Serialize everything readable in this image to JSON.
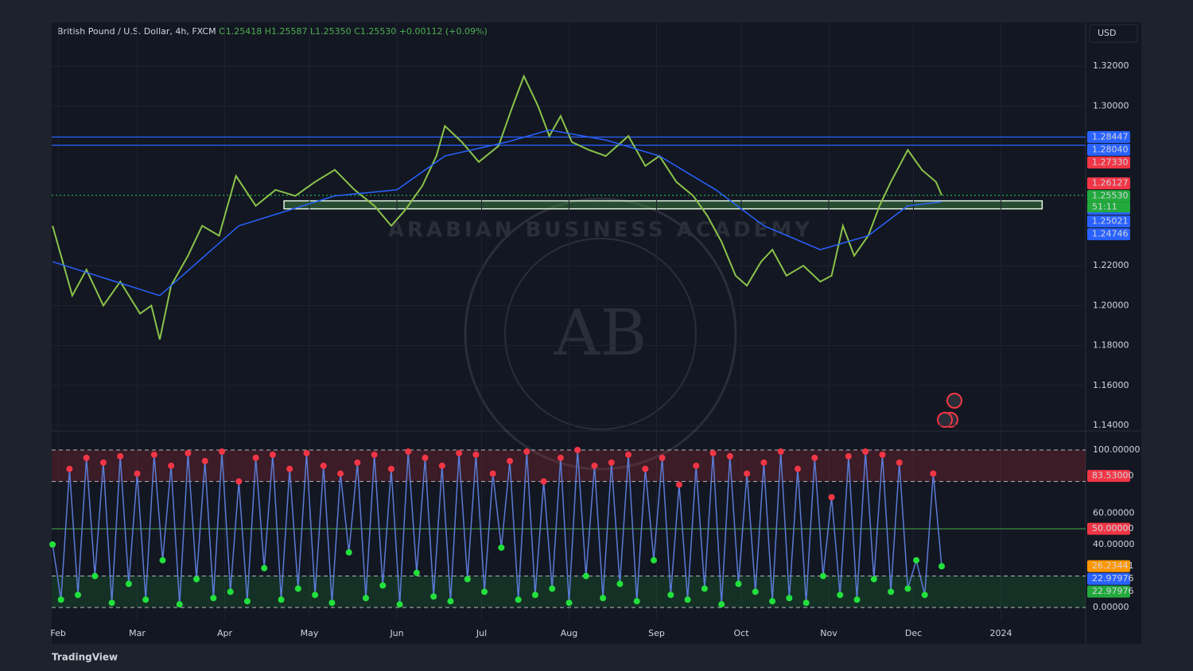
{
  "header": {
    "symbol": "British Pound / U.S. Dollar, 4h, FXCM",
    "open": "O1.25418",
    "high": "H1.25587",
    "low": "L1.25350",
    "close": "C1.25530",
    "change": "+0.00112 (+0.09%)",
    "currency": "USD"
  },
  "watermark": {
    "text": "ARABIAN BUSINESS ACADEMY",
    "logo": "AB"
  },
  "footer": {
    "brand": "TradingView"
  },
  "chart_data": [
    {
      "type": "line",
      "xlim": [
        28.7,
        395
      ],
      "xticks": [
        {
          "value": 31,
          "label": "Feb"
        },
        {
          "value": 59,
          "label": "Mar"
        },
        {
          "value": 90,
          "label": "Apr"
        },
        {
          "value": 120,
          "label": "May"
        },
        {
          "value": 151,
          "label": "Jun"
        },
        {
          "value": 181,
          "label": "Jul"
        },
        {
          "value": 212,
          "label": "Aug"
        },
        {
          "value": 243,
          "label": "Sep"
        },
        {
          "value": 273,
          "label": "Oct"
        },
        {
          "value": 304,
          "label": "Nov"
        },
        {
          "value": 334,
          "label": "Dec"
        },
        {
          "value": 365,
          "label": "2024"
        }
      ],
      "ylim": [
        1.138,
        1.342
      ],
      "yticks": [
        {
          "value": 1.32,
          "label": "1.32000"
        },
        {
          "value": 1.3,
          "label": "1.30000"
        },
        {
          "value": 1.22,
          "label": "1.22000"
        },
        {
          "value": 1.2,
          "label": "1.20000"
        },
        {
          "value": 1.18,
          "label": "1.18000"
        },
        {
          "value": 1.16,
          "label": "1.16000"
        },
        {
          "value": 1.14,
          "label": "1.14000"
        }
      ],
      "grid": true,
      "series": [
        {
          "name": "GBPUSD",
          "color": "#8bc34a",
          "x": [
            29,
            36,
            41,
            47,
            53,
            60,
            64,
            67,
            71,
            77,
            82,
            88,
            94,
            101,
            108,
            115,
            122,
            129,
            136,
            143,
            149,
            154,
            160,
            165,
            168,
            174,
            180,
            187,
            192,
            196,
            201,
            205,
            209,
            213,
            219,
            225,
            233,
            239,
            244,
            250,
            256,
            261,
            266,
            271,
            275,
            280,
            284,
            289,
            295,
            301,
            305,
            309,
            313,
            318,
            322,
            326,
            332,
            337,
            342,
            344
          ],
          "values": [
            1.24,
            1.205,
            1.218,
            1.2,
            1.212,
            1.196,
            1.2,
            1.183,
            1.21,
            1.225,
            1.24,
            1.235,
            1.265,
            1.25,
            1.258,
            1.255,
            1.262,
            1.268,
            1.258,
            1.25,
            1.24,
            1.248,
            1.26,
            1.275,
            1.29,
            1.282,
            1.272,
            1.28,
            1.3,
            1.315,
            1.3,
            1.285,
            1.295,
            1.282,
            1.278,
            1.275,
            1.285,
            1.27,
            1.275,
            1.262,
            1.255,
            1.245,
            1.232,
            1.215,
            1.21,
            1.222,
            1.228,
            1.215,
            1.22,
            1.212,
            1.215,
            1.24,
            1.225,
            1.235,
            1.25,
            1.262,
            1.278,
            1.268,
            1.262,
            1.2553
          ]
        },
        {
          "name": "MA",
          "color": "#2962ff",
          "x": [
            29,
            67,
            95,
            129,
            151,
            168,
            190,
            205,
            225,
            244,
            264,
            281,
            301,
            318,
            332,
            344
          ],
          "values": [
            1.222,
            1.205,
            1.24,
            1.255,
            1.258,
            1.275,
            1.282,
            1.288,
            1.283,
            1.275,
            1.258,
            1.24,
            1.228,
            1.235,
            1.25,
            1.252
          ]
        }
      ],
      "zones": [
        {
          "from": 1.2485,
          "to": 1.2525,
          "x": [
            111,
            379.6
          ],
          "color": "#4caf50"
        }
      ],
      "countdown": "51:11",
      "price_labels": [
        {
          "value": 1.28447,
          "label": "1.28447",
          "color": "#2962ff",
          "line": "solid"
        },
        {
          "value": 1.2804,
          "label": "1.28040",
          "color": "#2962ff",
          "line": "solid"
        },
        {
          "value": 1.2733,
          "label": "1.27330",
          "color": "#f23645"
        },
        {
          "value": 1.26127,
          "label": "1.26127",
          "color": "#f23645"
        },
        {
          "value": 1.2553,
          "label": "1.25530",
          "color": "#22ab3c",
          "line": "dotted"
        },
        {
          "value": 1.25021,
          "label": "1.25021",
          "color": "#2962ff"
        },
        {
          "value": 1.25021,
          "label": "1.25021",
          "color": "#2962ff"
        },
        {
          "value": 1.24746,
          "label": "1.24746",
          "color": "#2962ff"
        }
      ]
    },
    {
      "type": "line",
      "xlim": [
        28.7,
        395
      ],
      "ylim": [
        -8,
        110.6
      ],
      "yticks": [
        {
          "value": 100,
          "label": "100.00000"
        },
        {
          "value": 60,
          "label": "60.00000"
        },
        {
          "value": 40,
          "label": "40.00000"
        },
        {
          "value": 0,
          "label": "0.00000"
        }
      ],
      "series": [
        {
          "name": "Oscillator",
          "color": "#5b7bd5",
          "x": [
            29,
            32,
            35,
            38,
            41,
            44,
            47,
            50,
            53,
            56,
            59,
            62,
            65,
            68,
            71,
            74,
            77,
            80,
            83,
            86,
            89,
            92,
            95,
            98,
            101,
            104,
            107,
            110,
            113,
            116,
            119,
            122,
            125,
            128,
            131,
            134,
            137,
            140,
            143,
            146,
            149,
            152,
            155,
            158,
            161,
            164,
            167,
            170,
            173,
            176,
            179,
            182,
            185,
            188,
            191,
            194,
            197,
            200,
            203,
            206,
            209,
            212,
            215,
            218,
            221,
            224,
            227,
            230,
            233,
            236,
            239,
            242,
            245,
            248,
            251,
            254,
            257,
            260,
            263,
            266,
            269,
            272,
            275,
            278,
            281,
            284,
            287,
            290,
            293,
            296,
            299,
            302,
            305,
            308,
            311,
            314,
            317,
            320,
            323,
            326,
            329,
            332,
            335,
            338,
            341,
            344
          ],
          "values": [
            40,
            5,
            88,
            8,
            95,
            20,
            92,
            3,
            96,
            15,
            85,
            5,
            97,
            30,
            90,
            2,
            98,
            18,
            93,
            6,
            99,
            10,
            80,
            4,
            95,
            25,
            97,
            5,
            88,
            12,
            98,
            8,
            90,
            3,
            85,
            35,
            92,
            6,
            97,
            14,
            88,
            2,
            99,
            22,
            95,
            7,
            90,
            4,
            98,
            18,
            97,
            10,
            85,
            38,
            93,
            5,
            99,
            8,
            80,
            12,
            95,
            3,
            100,
            20,
            90,
            6,
            92,
            15,
            97,
            4,
            88,
            30,
            95,
            8,
            78,
            5,
            90,
            12,
            98,
            2,
            96,
            15,
            85,
            10,
            92,
            4,
            99,
            6,
            88,
            3,
            95,
            20,
            70,
            8,
            96,
            5,
            99,
            18,
            97,
            10,
            92,
            12,
            30,
            8,
            85,
            26.2
          ]
        }
      ],
      "zones": [
        {
          "from": 80,
          "to": 100,
          "color": "#f23645"
        },
        {
          "from": 0,
          "to": 20,
          "color": "#22ab3c"
        }
      ],
      "levels": [
        {
          "value": 100,
          "style": "dashed",
          "color": "#b2b5be"
        },
        {
          "value": 80,
          "style": "dashed",
          "color": "#b2b5be"
        },
        {
          "value": 50,
          "style": "solid",
          "color": "#4caf50"
        },
        {
          "value": 20,
          "style": "dashed",
          "color": "#b2b5be"
        },
        {
          "value": 0,
          "style": "dashed",
          "color": "#b2b5be"
        }
      ],
      "price_labels": [
        {
          "value": 83.53,
          "label": "83.53000",
          "color": "#f23645"
        },
        {
          "value": 50,
          "label": "50.00000",
          "color": "#f23645"
        },
        {
          "value": 26.23441,
          "label": "26.23441",
          "color": "#ff9800"
        },
        {
          "value": 22.97976,
          "label": "22.97976",
          "color": "#2962ff"
        },
        {
          "value": 22.97976,
          "label": "22.97976",
          "color": "#22ab3c"
        }
      ]
    }
  ]
}
